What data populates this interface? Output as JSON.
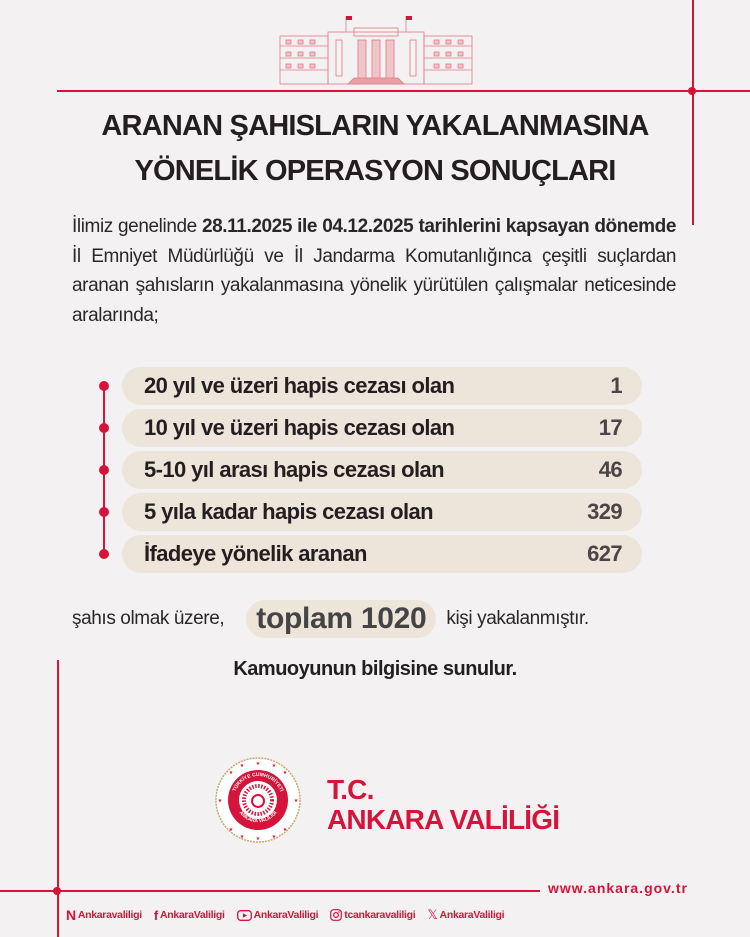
{
  "colors": {
    "accent": "#d4143a",
    "pill_bg": "#ede4da",
    "background": "#f3f1f2",
    "text": "#231f20"
  },
  "header": {
    "title_line1": "ARANAN ŞAHISLARIN YAKALANMASINA",
    "title_line2": "YÖNELİK OPERASYON SONUÇLARI"
  },
  "intro": {
    "prefix": "İlimiz genelinde ",
    "date_range": "28.11.2025 ile 04.12.2025  tarihlerini kapsayan dönemde",
    "body": " İl Emniyet Müdürlüğü ve İl Jandarma Komutanlığınca çeşitli suçlardan aranan şahısların yakalanmasına yönelik yürütülen çalışmalar neticesinde aralarında;"
  },
  "results": [
    {
      "label": "20 yıl ve üzeri hapis cezası olan",
      "value": "1"
    },
    {
      "label": "10 yıl ve üzeri hapis cezası olan",
      "value": "17"
    },
    {
      "label": "5-10 yıl arası hapis cezası olan",
      "value": "46"
    },
    {
      "label": "5 yıla kadar hapis cezası olan",
      "value": "329"
    },
    {
      "label": "İfadeye yönelik aranan",
      "value": "627"
    }
  ],
  "total": {
    "prefix": "şahıs olmak üzere,",
    "highlight": "toplam 1020",
    "suffix": "kişi yakalanmıştır."
  },
  "notice": "Kamuoyunun bilgisine sunulur.",
  "brand": {
    "line1": "T.C.",
    "line2": "ANKARA VALİLİĞİ",
    "emblem_text_top": "TÜRKİYE CUMHURİYETİ",
    "emblem_text_bottom": "ANKARA VALİLİĞİ"
  },
  "footer": {
    "website": "www.ankara.gov.tr",
    "socials": [
      {
        "icon": "nsosyal-icon",
        "handle": "Ankaravaliligi"
      },
      {
        "icon": "facebook-icon",
        "handle": "AnkaraValiligi"
      },
      {
        "icon": "youtube-icon",
        "handle": "AnkaraValiligi"
      },
      {
        "icon": "instagram-icon",
        "handle": "tcankaravaliligi"
      },
      {
        "icon": "x-icon",
        "handle": "AnkaraValiligi"
      }
    ]
  }
}
